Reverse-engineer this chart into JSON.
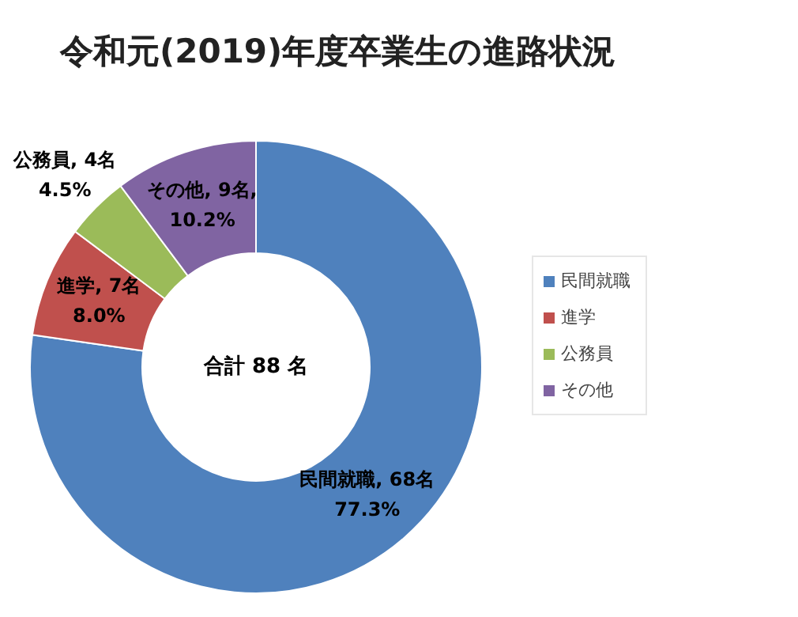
{
  "chart_data": {
    "type": "donut",
    "title": "令和元(2019)年度卒業生の進路状況",
    "categories": [
      "民間就職",
      "進学",
      "公務員",
      "その他"
    ],
    "values": [
      68,
      7,
      4,
      9
    ],
    "colors": [
      "#4f81bd",
      "#c0504d",
      "#9bbb59",
      "#8064a2"
    ],
    "value_labels": [
      "民間就職, 68名\n77.3%",
      "進学, 7名\n8.0%",
      "公務員, 4名\n4.5%",
      "その他, 9名,\n10.2%"
    ],
    "annotations": [
      "合計 88 名"
    ],
    "legend": "right"
  }
}
